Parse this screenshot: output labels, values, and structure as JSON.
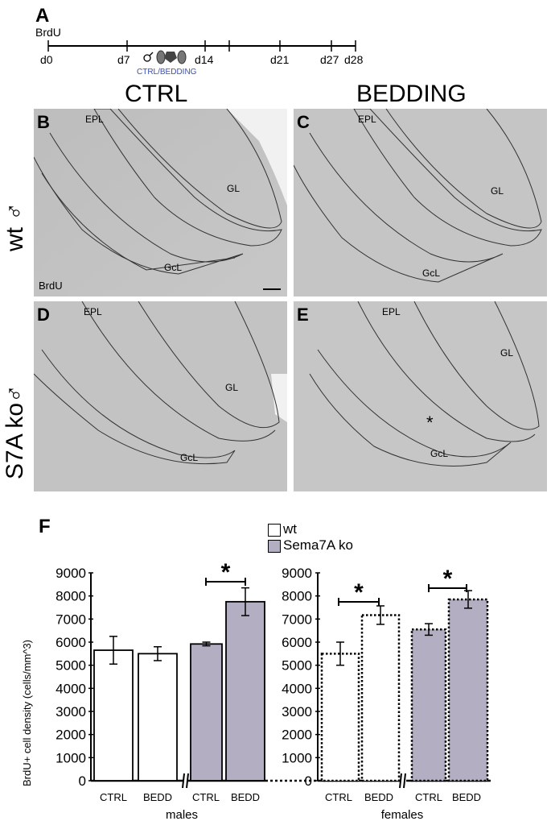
{
  "panel_a": {
    "letter": "A",
    "label": "BrdU",
    "days": [
      "d0",
      "d7",
      "d14",
      "d21",
      "d27",
      "d28"
    ],
    "treatment": "CTRL/BEDDING",
    "treatment_color": "#3a4fb0"
  },
  "columns": [
    "CTRL",
    "BEDDING"
  ],
  "rows": [
    "wt ♂",
    "S7A ko♂"
  ],
  "micrographs": [
    {
      "letter": "B",
      "regions": [
        "EPL",
        "GL",
        "GcL"
      ],
      "stain": "BrdU"
    },
    {
      "letter": "C",
      "regions": [
        "EPL",
        "GL",
        "GcL"
      ]
    },
    {
      "letter": "D",
      "regions": [
        "EPL",
        "GL",
        "GcL"
      ]
    },
    {
      "letter": "E",
      "regions": [
        "EPL",
        "GL",
        "GcL"
      ],
      "mark": "*"
    }
  ],
  "panel_f": {
    "letter": "F",
    "legend": [
      {
        "label": "wt",
        "color": "#ffffff"
      },
      {
        "label": "Sema7A ko",
        "color": "#b3aec2"
      }
    ]
  },
  "chart_data": {
    "type": "bar",
    "ylabel": "BrdU+ cell density (cells/mm^3)",
    "ylim": [
      0,
      9000
    ],
    "yticks": [
      0,
      1000,
      2000,
      3000,
      4000,
      5000,
      6000,
      7000,
      8000,
      9000
    ],
    "groups": [
      {
        "name": "males",
        "bars": [
          {
            "category": "CTRL",
            "genotype": "wt",
            "value": 5650,
            "error": 600
          },
          {
            "category": "BEDD",
            "genotype": "wt",
            "value": 5500,
            "error": 300
          },
          {
            "category": "CTRL",
            "genotype": "Sema7A ko",
            "value": 5920,
            "error": 80
          },
          {
            "category": "BEDD",
            "genotype": "Sema7A ko",
            "value": 7750,
            "error": 600
          }
        ]
      },
      {
        "name": "females",
        "bars": [
          {
            "category": "CTRL",
            "genotype": "wt",
            "value": 5500,
            "error": 500
          },
          {
            "category": "BEDD",
            "genotype": "wt",
            "value": 7170,
            "error": 400
          },
          {
            "category": "CTRL",
            "genotype": "Sema7A ko",
            "value": 6550,
            "error": 250
          },
          {
            "category": "BEDD",
            "genotype": "Sema7A ko",
            "value": 7850,
            "error": 380
          }
        ]
      }
    ],
    "significance": "*"
  }
}
